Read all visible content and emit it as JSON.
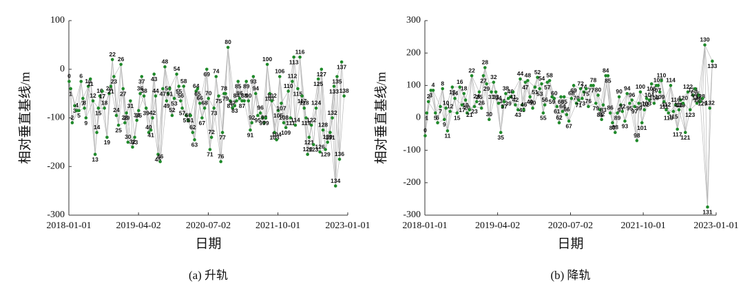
{
  "chart_data": [
    {
      "type": "network",
      "caption": "(a) 升轨",
      "x_label": "日期",
      "y_label": "相对垂直基线/m",
      "color": "#1f8a2a",
      "edge_color": "#b8b8b8",
      "xlim": [
        "2018-01-01",
        "2023-01-01"
      ],
      "xticks": [
        "2018-01-01",
        "2019-04-02",
        "2020-07-02",
        "2021-10-01",
        "2023-01-01"
      ],
      "ylim": [
        -300,
        100
      ],
      "yticks": [
        100,
        0,
        -100,
        -200,
        -300
      ],
      "x": [
        "2018-01-03",
        "2018-01-13",
        "2018-01-23",
        "2018-02-08",
        "2018-02-22",
        "2018-03-08",
        "2018-03-22",
        "2018-04-03",
        "2018-04-13",
        "2018-04-23",
        "2018-05-08",
        "2018-05-22",
        "2018-06-08",
        "2018-06-22",
        "2018-07-03",
        "2018-07-13",
        "2018-07-23",
        "2018-08-08",
        "2018-08-22",
        "2018-09-08",
        "2018-09-22",
        "2018-10-03",
        "2018-10-13",
        "2018-10-23",
        "2018-11-08",
        "2018-11-22",
        "2018-12-08",
        "2018-12-22",
        "2019-01-03",
        "2019-01-13",
        "2019-01-23",
        "2019-02-08",
        "2019-02-22",
        "2019-03-08",
        "2019-03-22",
        "2019-04-03",
        "2019-04-13",
        "2019-04-23",
        "2019-05-08",
        "2019-05-22",
        "2019-06-08",
        "2019-06-22",
        "2019-07-03",
        "2019-07-13",
        "2019-07-23",
        "2019-08-08",
        "2019-08-22",
        "2019-09-08",
        "2019-09-22",
        "2019-10-03",
        "2019-10-13",
        "2019-10-23",
        "2019-11-08",
        "2019-11-22",
        "2019-12-08",
        "2019-12-22",
        "2020-01-03",
        "2020-01-13",
        "2020-01-23",
        "2020-02-08",
        "2020-02-22",
        "2020-03-08",
        "2020-03-22",
        "2020-04-03",
        "2020-04-13",
        "2020-04-23",
        "2020-05-08",
        "2020-05-22",
        "2020-06-08",
        "2020-06-22",
        "2020-07-03",
        "2020-07-13",
        "2020-07-23",
        "2020-08-08",
        "2020-08-22",
        "2020-09-08",
        "2020-09-22",
        "2020-10-03",
        "2020-10-13",
        "2020-10-23",
        "2020-11-08",
        "2020-11-22",
        "2020-12-08",
        "2020-12-22",
        "2021-01-03",
        "2021-01-13",
        "2021-01-23",
        "2021-02-08",
        "2021-02-22",
        "2021-03-08",
        "2021-03-22",
        "2021-04-03",
        "2021-04-13",
        "2021-04-23",
        "2021-05-08",
        "2021-05-22",
        "2021-06-08",
        "2021-06-22",
        "2021-07-03",
        "2021-07-13",
        "2021-07-23",
        "2021-08-08",
        "2021-08-22",
        "2021-09-08",
        "2021-09-22",
        "2021-10-03",
        "2021-10-13",
        "2021-10-23",
        "2021-11-08",
        "2021-11-22",
        "2021-12-08",
        "2021-12-22",
        "2022-01-03",
        "2022-01-13",
        "2022-01-23",
        "2022-02-08",
        "2022-02-22",
        "2022-03-08",
        "2022-03-22",
        "2022-04-03",
        "2022-04-13",
        "2022-04-23",
        "2022-05-08",
        "2022-05-22",
        "2022-06-08",
        "2022-06-22",
        "2022-07-03",
        "2022-07-13",
        "2022-07-23",
        "2022-08-08",
        "2022-08-22",
        "2022-09-08",
        "2022-09-22",
        "2022-10-03",
        "2022-10-13",
        "2022-10-23",
        "2022-11-08",
        "2022-11-22",
        "2022-12-08"
      ],
      "values": [
        -25,
        -40,
        -110,
        -75,
        -85,
        -85,
        -25,
        -60,
        -80,
        -100,
        -35,
        -20,
        -65,
        -175,
        -130,
        -80,
        -55,
        -45,
        -80,
        -140,
        -50,
        -35,
        20,
        -15,
        -95,
        -115,
        10,
        -40,
        -110,
        -90,
        -150,
        -65,
        -160,
        -140,
        -105,
        -85,
        -50,
        -15,
        -55,
        -80,
        -130,
        -125,
        -100,
        -10,
        -55,
        -175,
        -190,
        -40,
        5,
        -65,
        -50,
        -40,
        -95,
        -60,
        -10,
        -35,
        -65,
        -80,
        -35,
        -95,
        -105,
        -95,
        -130,
        -145,
        -45,
        -40,
        -70,
        -100,
        -80,
        0,
        -60,
        -165,
        -140,
        -80,
        -15,
        -55,
        -190,
        -130,
        -50,
        -50,
        45,
        -65,
        -80,
        -75,
        -65,
        -25,
        -60,
        -65,
        -65,
        -25,
        -65,
        -125,
        -110,
        -15,
        -50,
        -95,
        -90,
        -100,
        -110,
        -100,
        10,
        -50,
        -65,
        -130,
        -145,
        -85,
        -15,
        -70,
        -110,
        -120,
        -45,
        -100,
        -25,
        25,
        -115,
        -40,
        25,
        -55,
        -80,
        -100,
        -175,
        -140,
        -115,
        -155,
        -80,
        -20,
        -170,
        0,
        -125,
        -165,
        -150,
        -130,
        -100,
        -35,
        -240,
        -15,
        -185,
        15,
        -55
      ],
      "point_labels": [
        0,
        1,
        2,
        3,
        4,
        5,
        6,
        7,
        8,
        9,
        10,
        11,
        12,
        13,
        14,
        15,
        16,
        17,
        18,
        19,
        20,
        21,
        22,
        23,
        24,
        25,
        26,
        27,
        28,
        29,
        30,
        31,
        32,
        33,
        34,
        35,
        36,
        37,
        38,
        39,
        40,
        41,
        42,
        43,
        44,
        45,
        46,
        47,
        48,
        49,
        50,
        51,
        52,
        53,
        54,
        55,
        56,
        57,
        58,
        59,
        60,
        61,
        62,
        63,
        64,
        65,
        66,
        67,
        68,
        69,
        70,
        71,
        72,
        73,
        74,
        75,
        76,
        77,
        78,
        79,
        80,
        81,
        82,
        83,
        84,
        85,
        86,
        87,
        88,
        89,
        90,
        91,
        92,
        93,
        94,
        95,
        96,
        97,
        98,
        99,
        100,
        101,
        102,
        103,
        104,
        105,
        106,
        107,
        108,
        109,
        110,
        111,
        112,
        113,
        114,
        115,
        116,
        117,
        118,
        119,
        120,
        121,
        122,
        123,
        124,
        125,
        126,
        127,
        128,
        129,
        130,
        131,
        132,
        133,
        134,
        135,
        136,
        137,
        138
      ]
    },
    {
      "type": "network",
      "caption": "(b) 降轨",
      "x_label": "日期",
      "y_label": "相对垂直基线/m",
      "color": "#1f8a2a",
      "edge_color": "#b8b8b8",
      "xlim": [
        "2018-01-01",
        "2023-01-01"
      ],
      "xticks": [
        "2018-01-01",
        "2019-04-02",
        "2020-07-02",
        "2021-10-01",
        "2023-01-01"
      ],
      "ylim": [
        -300,
        300
      ],
      "yticks": [
        300,
        200,
        100,
        0,
        -100,
        -200,
        -300
      ],
      "x": [
        "2018-01-03",
        "2018-01-13",
        "2018-01-23",
        "2018-02-08",
        "2018-02-22",
        "2018-03-08",
        "2018-03-22",
        "2018-04-08",
        "2018-04-22",
        "2018-05-03",
        "2018-05-13",
        "2018-05-23",
        "2018-06-08",
        "2018-06-22",
        "2018-07-08",
        "2018-07-22",
        "2018-08-08",
        "2018-08-22",
        "2018-09-03",
        "2018-09-13",
        "2018-09-23",
        "2018-10-08",
        "2018-10-22",
        "2018-11-08",
        "2018-11-22",
        "2018-12-08",
        "2018-12-22",
        "2019-01-03",
        "2019-01-13",
        "2019-01-23",
        "2019-02-08",
        "2019-02-22",
        "2019-03-08",
        "2019-03-22",
        "2019-04-08",
        "2019-04-22",
        "2019-05-03",
        "2019-05-13",
        "2019-05-23",
        "2019-06-08",
        "2019-06-22",
        "2019-07-08",
        "2019-07-22",
        "2019-08-08",
        "2019-08-22",
        "2019-09-03",
        "2019-09-13",
        "2019-09-23",
        "2019-10-08",
        "2019-10-22",
        "2019-11-08",
        "2019-11-22",
        "2019-12-08",
        "2019-12-22",
        "2020-01-03",
        "2020-01-13",
        "2020-01-23",
        "2020-02-08",
        "2020-02-22",
        "2020-03-08",
        "2020-03-22",
        "2020-04-08",
        "2020-04-22",
        "2020-05-03",
        "2020-05-13",
        "2020-05-23",
        "2020-06-08",
        "2020-06-22",
        "2020-07-08",
        "2020-07-22",
        "2020-08-08",
        "2020-08-22",
        "2020-09-03",
        "2020-09-13",
        "2020-09-23",
        "2020-10-08",
        "2020-10-22",
        "2020-11-08",
        "2020-11-22",
        "2020-12-08",
        "2020-12-22",
        "2021-01-03",
        "2021-01-13",
        "2021-01-23",
        "2021-02-08",
        "2021-02-22",
        "2021-03-08",
        "2021-03-22",
        "2021-04-08",
        "2021-04-22",
        "2021-05-03",
        "2021-05-13",
        "2021-05-23",
        "2021-06-08",
        "2021-06-22",
        "2021-07-08",
        "2021-07-22",
        "2021-08-08",
        "2021-08-22",
        "2021-09-03",
        "2021-09-13",
        "2021-09-23",
        "2021-10-08",
        "2021-10-22",
        "2021-11-08",
        "2021-11-22",
        "2021-12-08",
        "2021-12-22",
        "2022-01-03",
        "2022-01-13",
        "2022-01-23",
        "2022-02-08",
        "2022-02-22",
        "2022-03-08",
        "2022-03-22",
        "2022-04-08",
        "2022-04-22",
        "2022-05-03",
        "2022-05-13",
        "2022-05-23",
        "2022-06-08",
        "2022-06-22",
        "2022-07-08",
        "2022-07-22",
        "2022-08-08",
        "2022-08-22",
        "2022-09-03",
        "2022-09-13",
        "2022-09-23",
        "2022-10-08",
        "2022-10-22",
        "2022-11-08",
        "2022-11-22",
        "2022-12-08"
      ],
      "values": [
        -55,
        15,
        50,
        85,
        85,
        15,
        -15,
        35,
        90,
        -5,
        30,
        -40,
        20,
        95,
        60,
        15,
        95,
        40,
        75,
        55,
        15,
        25,
        130,
        35,
        50,
        80,
        30,
        130,
        155,
        105,
        -5,
        80,
        110,
        80,
        45,
        -45,
        35,
        50,
        75,
        60,
        65,
        80,
        40,
        25,
        120,
        40,
        25,
        110,
        115,
        65,
        30,
        95,
        125,
        90,
        105,
        15,
        40,
        110,
        115,
        65,
        60,
        35,
        -15,
        65,
        20,
        65,
        10,
        -10,
        60,
        100,
        45,
        55,
        90,
        60,
        80,
        90,
        35,
        100,
        100,
        45,
        70,
        25,
        -5,
        40,
        130,
        130,
        15,
        -15,
        -45,
        15,
        65,
        40,
        20,
        -10,
        75,
        45,
        55,
        35,
        -70,
        45,
        80,
        -15,
        25,
        60,
        55,
        105,
        45,
        100,
        100,
        80,
        115,
        50,
        25,
        15,
        100,
        20,
        40,
        -35,
        25,
        55,
        45,
        -45,
        80,
        25,
        70,
        90,
        45,
        70,
        50,
        60,
        225,
        -275,
        30,
        175
      ],
      "point_labels": [
        0,
        1,
        2,
        3,
        4,
        5,
        6,
        7,
        8,
        9,
        10,
        11,
        12,
        13,
        14,
        15,
        16,
        17,
        18,
        19,
        20,
        21,
        22,
        23,
        24,
        25,
        26,
        27,
        28,
        29,
        30,
        31,
        32,
        33,
        34,
        35,
        36,
        37,
        38,
        39,
        40,
        41,
        42,
        43,
        44,
        45,
        46,
        47,
        48,
        49,
        50,
        51,
        52,
        53,
        54,
        55,
        56,
        57,
        58,
        59,
        60,
        61,
        62,
        63,
        64,
        65,
        66,
        67,
        68,
        69,
        70,
        71,
        72,
        73,
        74,
        75,
        76,
        77,
        78,
        79,
        80,
        81,
        82,
        83,
        84,
        85,
        86,
        87,
        88,
        89,
        90,
        91,
        92,
        93,
        94,
        95,
        96,
        97,
        98,
        99,
        100,
        101,
        102,
        103,
        104,
        105,
        106,
        107,
        108,
        109,
        110,
        111,
        112,
        113,
        114,
        115,
        116,
        117,
        118,
        119,
        120,
        121,
        122,
        123,
        124,
        125,
        126,
        127,
        128,
        129,
        130,
        131,
        132,
        133
      ]
    }
  ]
}
